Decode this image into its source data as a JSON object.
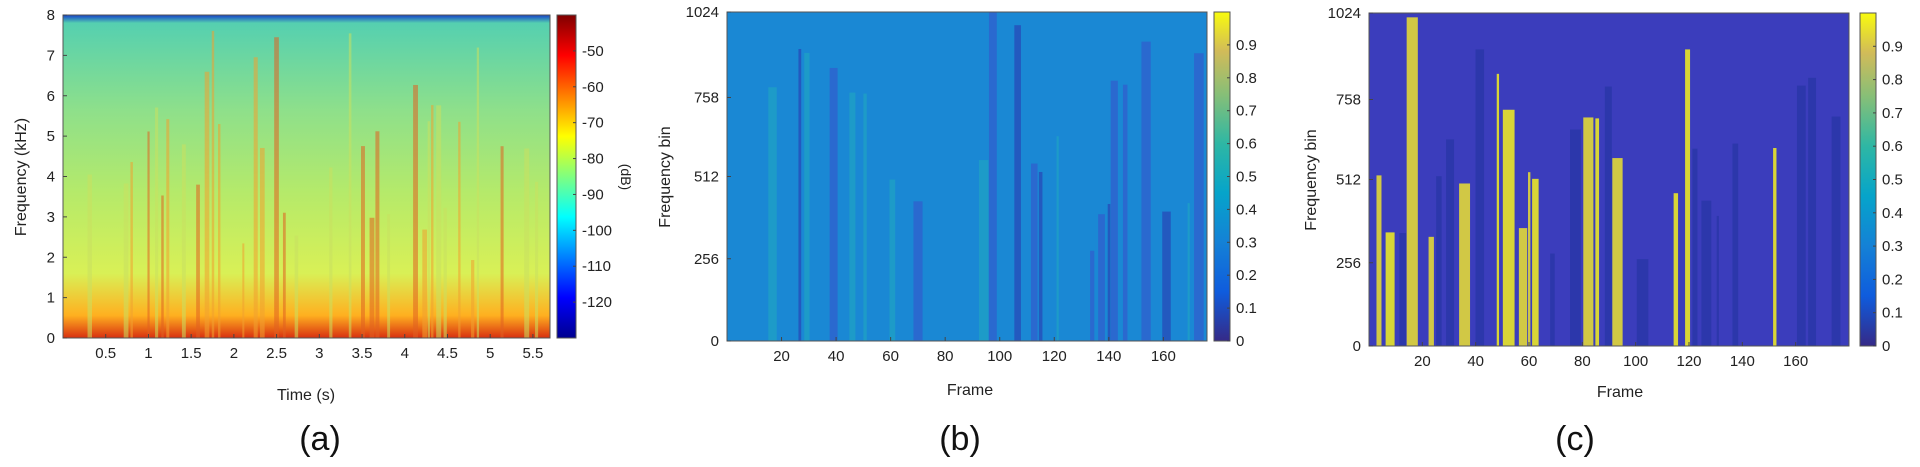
{
  "chart_data": [
    {
      "type": "heatmap",
      "panel_label": "(a)",
      "title": "",
      "xlabel": "Time (s)",
      "ylabel": "Frequency (kHz)",
      "colorbar_label": "(dB)",
      "xlim": [
        0,
        5.7
      ],
      "ylim": [
        0,
        8
      ],
      "xticks": [
        0.5,
        1,
        1.5,
        2,
        2.5,
        3,
        3.5,
        4,
        4.5,
        5,
        5.5
      ],
      "xtick_labels": [
        "0.5",
        "1",
        "1.5",
        "2",
        "2.5",
        "3",
        "3.5",
        "4",
        "4.5",
        "5",
        "5.5"
      ],
      "yticks": [
        0,
        1,
        2,
        3,
        4,
        5,
        6,
        7,
        8
      ],
      "ytick_labels": [
        "0",
        "1",
        "2",
        "3",
        "4",
        "5",
        "6",
        "7",
        "8"
      ],
      "clim": [
        -130,
        -40
      ],
      "cticks": [
        -50,
        -60,
        -70,
        -80,
        -90,
        -100,
        -110,
        -120
      ],
      "ctick_labels": [
        "-50",
        "-60",
        "-70",
        "-80",
        "-90",
        "-100",
        "-110",
        "-120"
      ],
      "colormap": "jet",
      "grid": false
    },
    {
      "type": "heatmap",
      "panel_label": "(b)",
      "title": "",
      "xlabel": "Frame",
      "ylabel": "Frequency bin",
      "xlim": [
        0,
        176
      ],
      "ylim": [
        0,
        1024
      ],
      "xticks": [
        20,
        40,
        60,
        80,
        100,
        120,
        140,
        160
      ],
      "xtick_labels": [
        "20",
        "40",
        "60",
        "80",
        "100",
        "120",
        "140",
        "160"
      ],
      "yticks": [
        0,
        256,
        512,
        758,
        1024
      ],
      "ytick_labels": [
        "0",
        "256",
        "512",
        "758",
        "1024"
      ],
      "clim": [
        0,
        1
      ],
      "cticks": [
        0,
        0.1,
        0.2,
        0.3,
        0.4,
        0.5,
        0.6,
        0.7,
        0.8,
        0.9
      ],
      "ctick_labels": [
        "0",
        "0.1",
        "0.2",
        "0.3",
        "0.4",
        "0.5",
        "0.6",
        "0.7",
        "0.8",
        "0.9"
      ],
      "colormap": "parula",
      "grid": false
    },
    {
      "type": "heatmap",
      "panel_label": "(c)",
      "title": "",
      "xlabel": "Frame",
      "ylabel": "Frequency bin",
      "xlim": [
        0,
        180
      ],
      "ylim": [
        0,
        1024
      ],
      "xticks": [
        20,
        40,
        60,
        80,
        100,
        120,
        140,
        160
      ],
      "xtick_labels": [
        "20",
        "40",
        "60",
        "80",
        "100",
        "120",
        "140",
        "160"
      ],
      "yticks": [
        0,
        256,
        512,
        758,
        1024
      ],
      "ytick_labels": [
        "0",
        "256",
        "512",
        "758",
        "1024"
      ],
      "clim": [
        0,
        1
      ],
      "cticks": [
        0,
        0.1,
        0.2,
        0.3,
        0.4,
        0.5,
        0.6,
        0.7,
        0.8,
        0.9
      ],
      "ctick_labels": [
        "0",
        "0.1",
        "0.2",
        "0.3",
        "0.4",
        "0.5",
        "0.6",
        "0.7",
        "0.8",
        "0.9"
      ],
      "colormap": "parula",
      "grid": false
    }
  ]
}
